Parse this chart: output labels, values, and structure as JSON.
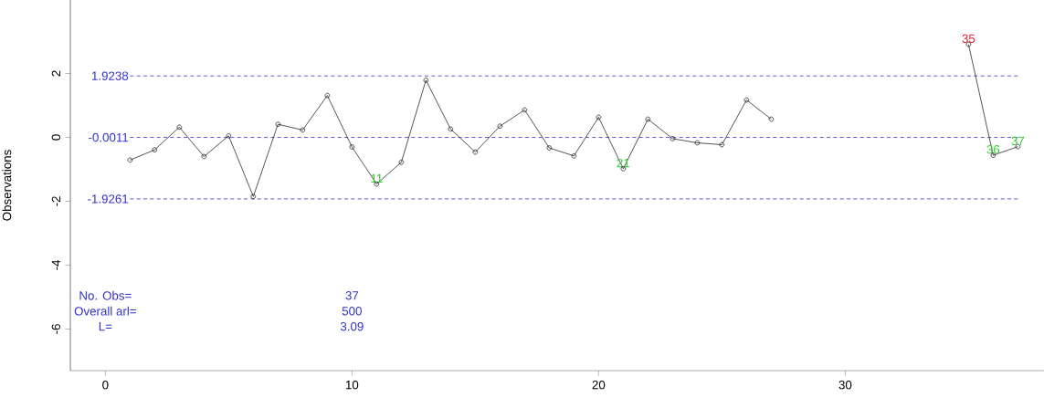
{
  "chart_data": {
    "type": "line",
    "ylabel": "Observations",
    "x": [
      1,
      2,
      3,
      4,
      5,
      6,
      7,
      8,
      9,
      10,
      11,
      12,
      13,
      14,
      15,
      16,
      17,
      18,
      19,
      20,
      21,
      22,
      23,
      24,
      25,
      26,
      27,
      28,
      29,
      30,
      31,
      32,
      33,
      34,
      35,
      36,
      37
    ],
    "series": [
      {
        "color": "#000000",
        "values": [
          -0.71,
          -0.39,
          0.32,
          -0.6,
          0.05,
          -1.85,
          0.41,
          0.23,
          1.31,
          -0.3,
          -1.46,
          -0.78,
          1.79,
          0.26,
          -0.46,
          0.35,
          0.86,
          -0.33,
          -0.58,
          0.63,
          -0.98,
          0.57,
          -0.04,
          -0.17,
          -0.23,
          1.17,
          0.57,
          null,
          null,
          null,
          null,
          null,
          null,
          null,
          2.91,
          -0.56,
          -0.29
        ]
      }
    ],
    "marker": "circle",
    "xlim": [
      -1.42,
      38.06
    ],
    "ylim": [
      -7.3,
      4.3
    ],
    "xticks": [
      0,
      10,
      20,
      30
    ],
    "yticks": [
      -6,
      -4,
      -2,
      0,
      2
    ],
    "ref_lines": [
      {
        "axis": "y",
        "value": 1.9238,
        "label": "1.9238",
        "color": "#3333cc",
        "line_style": "dashed"
      },
      {
        "axis": "y",
        "value": -0.0011,
        "label": "-0.0011",
        "color": "#3333cc",
        "line_style": "dashed"
      },
      {
        "axis": "y",
        "value": -1.9261,
        "label": "-1.9261",
        "color": "#3333cc",
        "line_style": "dashed"
      }
    ],
    "annotations": [
      {
        "text": "11",
        "x": 11,
        "y": -1.46
      },
      {
        "text": "21",
        "x": 21,
        "y": -0.98
      },
      {
        "text": "35",
        "x": 35,
        "y": 2.91
      },
      {
        "text": "36",
        "x": 36,
        "y": -0.56
      },
      {
        "text": "37",
        "x": 37,
        "y": -0.29
      },
      "No. Obs=",
      "Overall arl=",
      "L=",
      "37",
      "500",
      "3.09"
    ]
  }
}
